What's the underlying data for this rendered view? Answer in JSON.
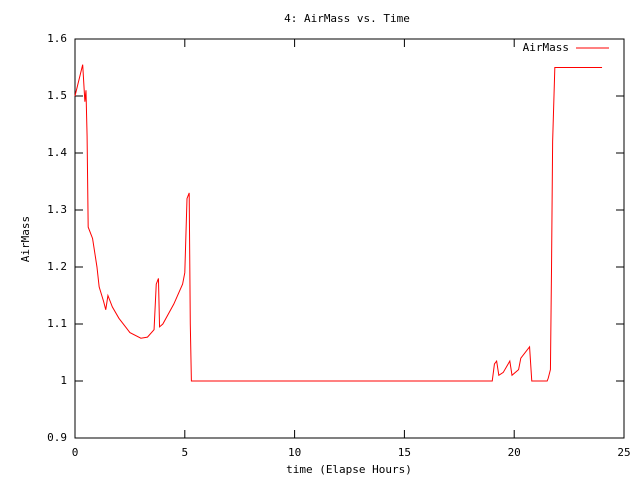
{
  "chart_data": {
    "type": "line",
    "title": "4: AirMass vs. Time",
    "x_label": "time (Elapse Hours)",
    "y_label": "AirMass",
    "xlim": [
      0,
      25
    ],
    "ylim": [
      0.9,
      1.6
    ],
    "xticks": [
      0,
      5,
      10,
      15,
      20,
      25
    ],
    "yticks": [
      0.9,
      1,
      1.1,
      1.2,
      1.3,
      1.4,
      1.5,
      1.6
    ],
    "grid": false,
    "legend": "top-right",
    "series": [
      {
        "name": "AirMass",
        "color": "#ff0000",
        "x": [
          0,
          0.35,
          0.45,
          0.5,
          0.55,
          0.6,
          0.8,
          1.0,
          1.1,
          1.3,
          1.4,
          1.5,
          1.7,
          2.0,
          2.5,
          3.0,
          3.3,
          3.6,
          3.7,
          3.8,
          3.85,
          4.0,
          4.5,
          4.9,
          5.0,
          5.1,
          5.2,
          5.25,
          5.3,
          19.0,
          19.1,
          19.2,
          19.3,
          19.5,
          19.8,
          19.9,
          20.2,
          20.3,
          20.7,
          20.8,
          21.5,
          21.55,
          21.65,
          21.7,
          21.75,
          21.85,
          24
        ],
        "values": [
          1.5,
          1.555,
          1.49,
          1.51,
          1.43,
          1.27,
          1.25,
          1.2,
          1.165,
          1.14,
          1.125,
          1.15,
          1.13,
          1.11,
          1.085,
          1.075,
          1.077,
          1.09,
          1.17,
          1.18,
          1.095,
          1.1,
          1.135,
          1.17,
          1.19,
          1.32,
          1.33,
          1.1,
          1.0,
          1.0,
          1.03,
          1.035,
          1.01,
          1.015,
          1.035,
          1.01,
          1.02,
          1.04,
          1.06,
          1.0,
          1.0,
          1.005,
          1.02,
          1.2,
          1.42,
          1.55,
          1.55
        ]
      }
    ]
  }
}
